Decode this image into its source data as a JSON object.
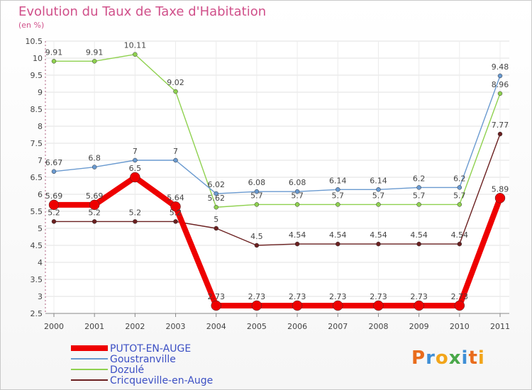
{
  "title": "Evolution du Taux de Taxe d'Habitation",
  "subtitle": "(en %)",
  "logo": {
    "text": "Proxiti",
    "letters": [
      "P",
      "r",
      "o",
      "x",
      "i",
      "t",
      "i"
    ],
    "colors": [
      "#e96c1c",
      "#3f8fd6",
      "#f2a51a",
      "#4aa84a",
      "#3f8fd6",
      "#e96c1c",
      "#f2a51a"
    ]
  },
  "chart_data": {
    "type": "line",
    "title": "Evolution du Taux de Taxe d'Habitation",
    "ylabel": "(en %)",
    "categories": [
      "2000",
      "2001",
      "2002",
      "2003",
      "2004",
      "2005",
      "2006",
      "2007",
      "2008",
      "2009",
      "2010",
      "2011"
    ],
    "ylim": [
      2.5,
      10.5
    ],
    "yticks": [
      2.5,
      3,
      3.5,
      4,
      4.5,
      5,
      5.5,
      6,
      6.5,
      7,
      7.5,
      8,
      8.5,
      9,
      9.5,
      10,
      10.5
    ],
    "ytick_labels": [
      "2.5",
      "3",
      "3.5",
      "4",
      "4.5",
      "5",
      "5.5",
      "6",
      "6.5",
      "7",
      "7.5",
      "8",
      "8.5",
      "9",
      "9.5",
      "10",
      "10.5"
    ],
    "grid": true,
    "legend_position": "bottom-left",
    "series": [
      {
        "name": "Cricqueville-en-Auge",
        "color": "#6b2020",
        "values": [
          5.2,
          5.2,
          5.2,
          5.2,
          5,
          4.5,
          4.54,
          4.54,
          4.54,
          4.54,
          4.54,
          7.77
        ],
        "labels": [
          "5.2",
          "5.2",
          "5.2",
          "5.2",
          "5",
          "4.5",
          "4.54",
          "4.54",
          "4.54",
          "4.54",
          "4.54",
          "7.77"
        ]
      },
      {
        "name": "Dozulé",
        "color": "#8fd14f",
        "values": [
          9.91,
          9.91,
          10.11,
          9.02,
          5.62,
          5.7,
          5.7,
          5.7,
          5.7,
          5.7,
          5.7,
          8.96
        ],
        "labels": [
          "9.91",
          "9.91",
          "10.11",
          "9.02",
          "5.62",
          "5.7",
          "5.7",
          "5.7",
          "5.7",
          "5.7",
          "5.7",
          "8.96"
        ]
      },
      {
        "name": "Goustranville",
        "color": "#6a9ad0",
        "values": [
          6.67,
          6.8,
          7,
          7,
          6.02,
          6.08,
          6.08,
          6.14,
          6.14,
          6.2,
          6.2,
          9.48
        ],
        "labels": [
          "6.67",
          "6.8",
          "7",
          "7",
          "6.02",
          "6.08",
          "6.08",
          "6.14",
          "6.14",
          "6.2",
          "6.2",
          "9.48"
        ]
      },
      {
        "name": "PUTOT-EN-AUGE",
        "color": "#ee0000",
        "values": [
          5.69,
          5.69,
          6.5,
          5.64,
          2.73,
          2.73,
          2.73,
          2.73,
          2.73,
          2.73,
          2.73,
          5.89
        ],
        "labels": [
          "5.69",
          "5.69",
          "6.5",
          "5.64",
          "2.73",
          "2.73",
          "2.73",
          "2.73",
          "2.73",
          "2.73",
          "2.73",
          "5.89"
        ]
      }
    ],
    "legend": [
      "PUTOT-EN-AUGE",
      "Goustranville",
      "Dozulé",
      "Cricqueville-en-Auge"
    ]
  }
}
